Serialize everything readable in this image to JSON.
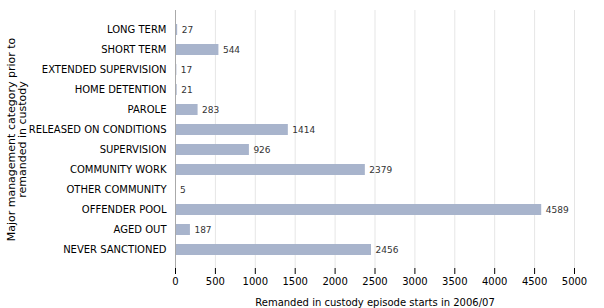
{
  "chart_data": {
    "type": "bar",
    "orientation": "horizontal",
    "categories": [
      "NEVER SANCTIONED",
      "AGED OUT",
      "OFFENDER POOL",
      "OTHER COMMUNITY",
      "COMMUNITY WORK",
      "SUPERVISION",
      "RELEASED ON CONDITIONS",
      "PAROLE",
      "HOME DETENTION",
      "EXTENDED SUPERVISION",
      "SHORT TERM",
      "LONG TERM"
    ],
    "values": [
      2456,
      187,
      4589,
      5,
      2379,
      926,
      1414,
      283,
      21,
      17,
      544,
      27
    ],
    "color": "#a8b4cc",
    "xlabel": "Remanded in custody episode starts in 2006/07",
    "ylabel": "Major management category prior to\nremanded in custody",
    "xlim": [
      0,
      5000
    ],
    "xticks": [
      0,
      500,
      1000,
      1500,
      2000,
      2500,
      3000,
      3500,
      4000,
      4500,
      5000
    ],
    "grid": true,
    "data_labels": true
  }
}
